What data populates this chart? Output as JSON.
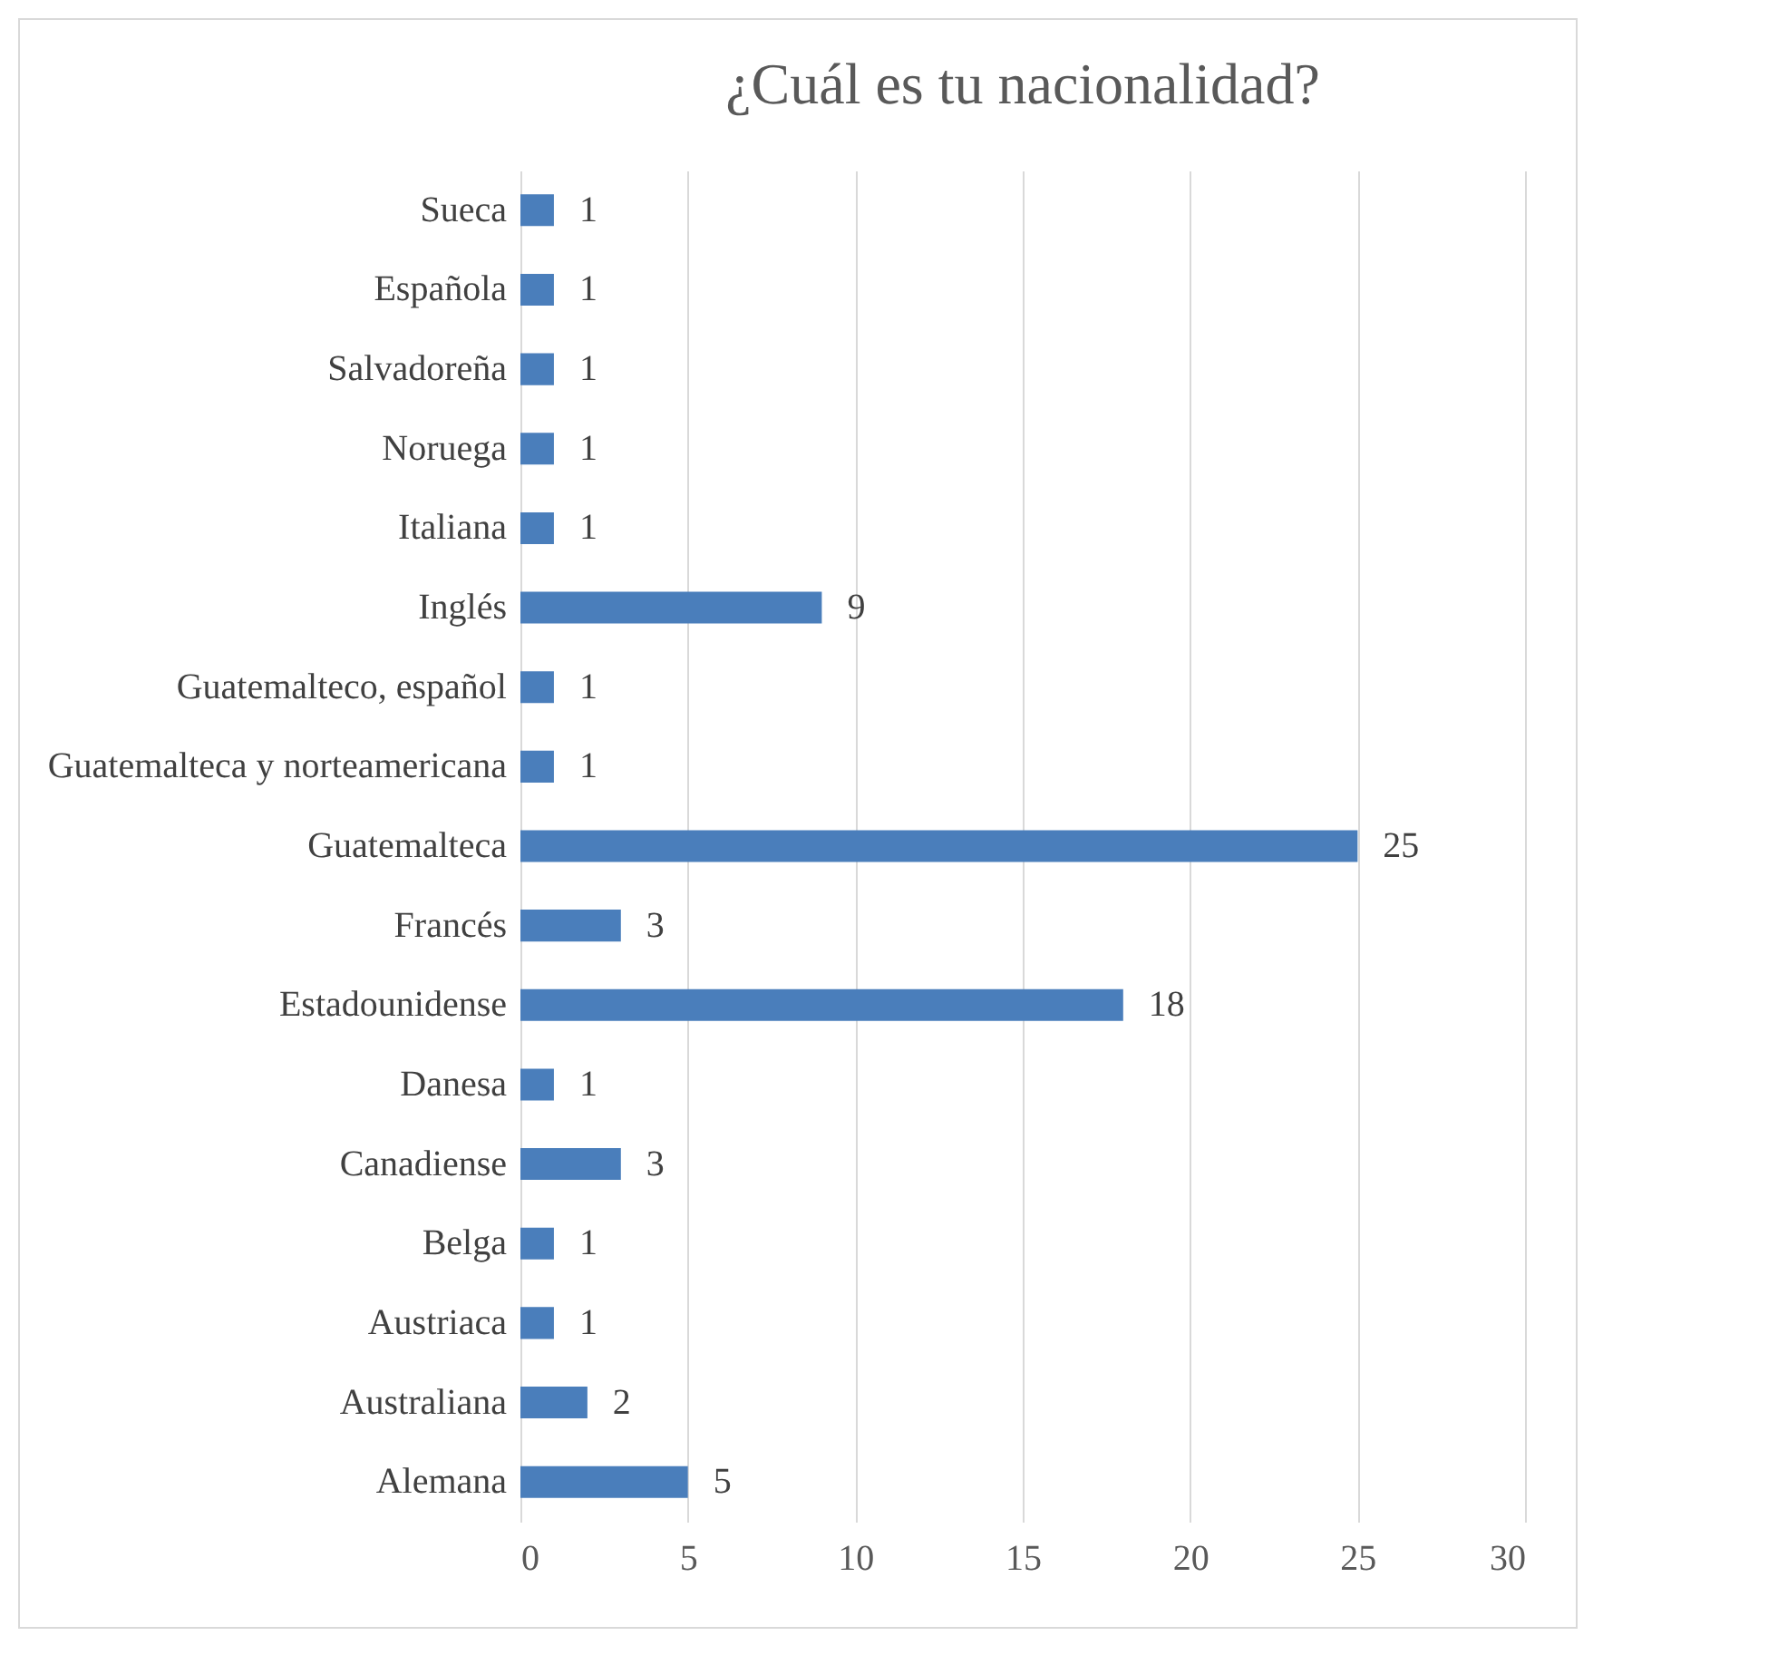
{
  "chart_data": {
    "type": "bar",
    "orientation": "horizontal",
    "title": "¿Cuál es tu nacionalidad?",
    "categories": [
      "Sueca",
      "Española",
      "Salvadoreña",
      "Noruega",
      "Italiana",
      "Inglés",
      "Guatemalteco, español",
      "Guatemalteca y norteamericana",
      "Guatemalteca",
      "Francés",
      "Estadounidense",
      "Danesa",
      "Canadiense",
      "Belga",
      "Austriaca",
      "Australiana",
      "Alemana"
    ],
    "values": [
      1,
      1,
      1,
      1,
      1,
      9,
      1,
      1,
      25,
      3,
      18,
      1,
      3,
      1,
      1,
      2,
      5
    ],
    "color": "#4a7ebb",
    "xlim": [
      0,
      30
    ],
    "xticks": [
      0,
      5,
      10,
      15,
      20,
      25,
      30
    ],
    "grid": "x",
    "data_labels": true
  }
}
